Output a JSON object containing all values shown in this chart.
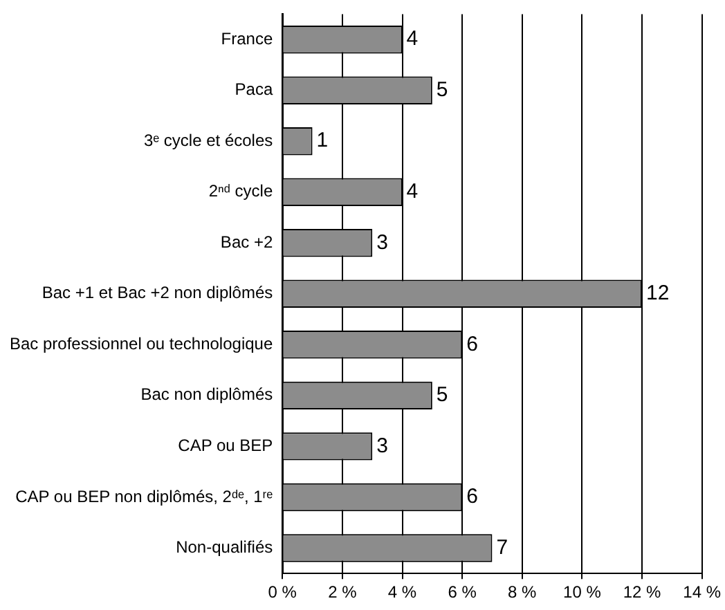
{
  "chart_data": {
    "type": "bar",
    "orientation": "horizontal",
    "categories": [
      "France",
      "Paca",
      "3ᵉ cycle et écoles",
      "2ⁿᵈ cycle",
      "Bac +2",
      "Bac +1 et Bac +2 non diplômés",
      "Bac professionnel ou technologique",
      "Bac non diplômés",
      "CAP ou BEP",
      "CAP ou BEP non diplômés, 2ᵈᵉ, 1ʳᵉ",
      "Non-qualifiés"
    ],
    "values": [
      4,
      5,
      1,
      4,
      3,
      12,
      6,
      5,
      3,
      6,
      7
    ],
    "color": "#8c8c8c",
    "xlim": [
      0,
      14
    ],
    "xticks": [
      {
        "value": 0,
        "label": "0 %"
      },
      {
        "value": 2,
        "label": "2 %"
      },
      {
        "value": 4,
        "label": "4 %"
      },
      {
        "value": 6,
        "label": "6 %"
      },
      {
        "value": 8,
        "label": "8 %"
      },
      {
        "value": 10,
        "label": "10 %"
      },
      {
        "value": 12,
        "label": "12 %"
      },
      {
        "value": 14,
        "label": "14 %"
      }
    ],
    "grid": "x",
    "data_labels": true,
    "legend": false
  }
}
